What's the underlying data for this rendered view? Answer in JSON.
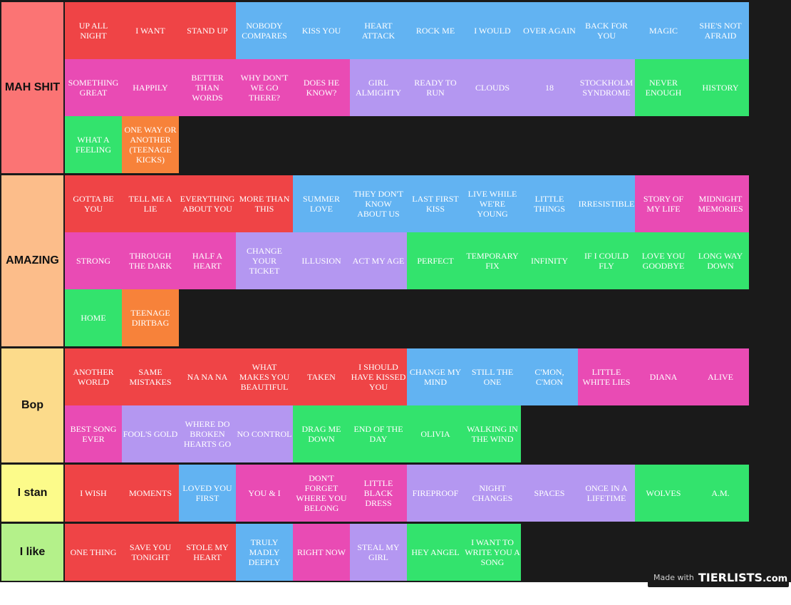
{
  "colors": {
    "red": "#ef4446",
    "blue": "#62b3f2",
    "pink": "#e94bb4",
    "purple": "#b497f1",
    "green": "#33e36d",
    "orange": "#f7823a"
  },
  "tiers": [
    {
      "label": "MAH SHIT",
      "color": "#fb7474",
      "items": [
        {
          "text": "UP ALL NIGHT",
          "color": "red"
        },
        {
          "text": "I WANT",
          "color": "red"
        },
        {
          "text": "STAND UP",
          "color": "red"
        },
        {
          "text": "NOBODY COMPARES",
          "color": "blue"
        },
        {
          "text": "KISS YOU",
          "color": "blue"
        },
        {
          "text": "HEART ATTACK",
          "color": "blue"
        },
        {
          "text": "ROCK ME",
          "color": "blue"
        },
        {
          "text": "I WOULD",
          "color": "blue"
        },
        {
          "text": "OVER AGAIN",
          "color": "blue"
        },
        {
          "text": "BACK FOR YOU",
          "color": "blue"
        },
        {
          "text": "MAGIC",
          "color": "blue"
        },
        {
          "text": "SHE'S NOT AFRAID",
          "color": "blue"
        },
        {
          "text": "SOMETHING GREAT",
          "color": "pink"
        },
        {
          "text": "HAPPILY",
          "color": "pink"
        },
        {
          "text": "BETTER THAN WORDS",
          "color": "pink"
        },
        {
          "text": "WHY DON'T WE GO THERE?",
          "color": "pink"
        },
        {
          "text": "DOES HE KNOW?",
          "color": "pink"
        },
        {
          "text": "GIRL ALMIGHTY",
          "color": "purple"
        },
        {
          "text": "READY TO RUN",
          "color": "purple"
        },
        {
          "text": "CLOUDS",
          "color": "purple"
        },
        {
          "text": "18",
          "color": "purple"
        },
        {
          "text": "STOCKHOLM SYNDROME",
          "color": "purple"
        },
        {
          "text": "NEVER ENOUGH",
          "color": "green"
        },
        {
          "text": "HISTORY",
          "color": "green"
        },
        {
          "text": "WHAT A FEELING",
          "color": "green"
        },
        {
          "text": "ONE WAY OR ANOTHER (TEENAGE KICKS)",
          "color": "orange"
        }
      ]
    },
    {
      "label": "AMAZING",
      "color": "#fcbd8a",
      "items": [
        {
          "text": "GOTTA BE YOU",
          "color": "red"
        },
        {
          "text": "TELL ME A LIE",
          "color": "red"
        },
        {
          "text": "EVERYTHING ABOUT YOU",
          "color": "red"
        },
        {
          "text": "MORE THAN THIS",
          "color": "red"
        },
        {
          "text": "SUMMER LOVE",
          "color": "blue"
        },
        {
          "text": "THEY DON'T KNOW ABOUT US",
          "color": "blue"
        },
        {
          "text": "LAST FIRST KISS",
          "color": "blue"
        },
        {
          "text": "LIVE WHILE WE'RE YOUNG",
          "color": "blue"
        },
        {
          "text": "LITTLE THINGS",
          "color": "blue"
        },
        {
          "text": "IRRESISTIBLE",
          "color": "blue"
        },
        {
          "text": "STORY OF MY LIFE",
          "color": "pink"
        },
        {
          "text": "MIDNIGHT MEMORIES",
          "color": "pink"
        },
        {
          "text": "STRONG",
          "color": "pink"
        },
        {
          "text": "THROUGH THE DARK",
          "color": "pink"
        },
        {
          "text": "HALF A HEART",
          "color": "pink"
        },
        {
          "text": "CHANGE YOUR TICKET",
          "color": "purple"
        },
        {
          "text": "ILLUSION",
          "color": "purple"
        },
        {
          "text": "ACT MY AGE",
          "color": "purple"
        },
        {
          "text": "PERFECT",
          "color": "green"
        },
        {
          "text": "TEMPORARY FIX",
          "color": "green"
        },
        {
          "text": "INFINITY",
          "color": "green"
        },
        {
          "text": "IF I COULD FLY",
          "color": "green"
        },
        {
          "text": "LOVE YOU GOODBYE",
          "color": "green"
        },
        {
          "text": "LONG WAY DOWN",
          "color": "green"
        },
        {
          "text": "HOME",
          "color": "green"
        },
        {
          "text": "TEENAGE DIRTBAG",
          "color": "orange"
        }
      ]
    },
    {
      "label": "Bop",
      "color": "#fcdb8b",
      "items": [
        {
          "text": "ANOTHER WORLD",
          "color": "red"
        },
        {
          "text": "SAME MISTAKES",
          "color": "red"
        },
        {
          "text": "NA NA NA",
          "color": "red"
        },
        {
          "text": "WHAT MAKES YOU BEAUTIFUL",
          "color": "red"
        },
        {
          "text": "TAKEN",
          "color": "red"
        },
        {
          "text": "I SHOULD HAVE KISSED YOU",
          "color": "red"
        },
        {
          "text": "CHANGE MY MIND",
          "color": "blue"
        },
        {
          "text": "STILL THE ONE",
          "color": "blue"
        },
        {
          "text": "C'MON, C'MON",
          "color": "blue"
        },
        {
          "text": "LITTLE WHITE LIES",
          "color": "pink"
        },
        {
          "text": "DIANA",
          "color": "pink"
        },
        {
          "text": "ALIVE",
          "color": "pink"
        },
        {
          "text": "BEST SONG EVER",
          "color": "pink"
        },
        {
          "text": "FOOL'S GOLD",
          "color": "purple"
        },
        {
          "text": "WHERE DO BROKEN HEARTS GO",
          "color": "purple"
        },
        {
          "text": "NO CONTROL",
          "color": "purple"
        },
        {
          "text": "DRAG ME DOWN",
          "color": "green"
        },
        {
          "text": "END OF THE DAY",
          "color": "green"
        },
        {
          "text": "OLIVIA",
          "color": "green"
        },
        {
          "text": "WALKING IN THE WIND",
          "color": "green"
        }
      ]
    },
    {
      "label": "I stan",
      "color": "#fcfb8a",
      "items": [
        {
          "text": "I WISH",
          "color": "red"
        },
        {
          "text": "MOMENTS",
          "color": "red"
        },
        {
          "text": "LOVED YOU FIRST",
          "color": "blue"
        },
        {
          "text": "YOU & I",
          "color": "pink"
        },
        {
          "text": "DON'T FORGET WHERE YOU BELONG",
          "color": "pink"
        },
        {
          "text": "LITTLE BLACK DRESS",
          "color": "pink"
        },
        {
          "text": "FIREPROOF",
          "color": "purple"
        },
        {
          "text": "NIGHT CHANGES",
          "color": "purple"
        },
        {
          "text": "SPACES",
          "color": "purple"
        },
        {
          "text": "ONCE IN A LIFETIME",
          "color": "purple"
        },
        {
          "text": "WOLVES",
          "color": "green"
        },
        {
          "text": "A.M.",
          "color": "green"
        }
      ]
    },
    {
      "label": "I like",
      "color": "#b4f18a",
      "items": [
        {
          "text": "ONE THING",
          "color": "red"
        },
        {
          "text": "SAVE YOU TONIGHT",
          "color": "red"
        },
        {
          "text": "STOLE MY HEART",
          "color": "red"
        },
        {
          "text": "TRULY MADLY DEEPLY",
          "color": "blue"
        },
        {
          "text": "RIGHT NOW",
          "color": "pink"
        },
        {
          "text": "STEAL MY GIRL",
          "color": "purple"
        },
        {
          "text": "HEY ANGEL",
          "color": "green"
        },
        {
          "text": "I WANT TO WRITE YOU A SONG",
          "color": "green"
        }
      ]
    }
  ],
  "watermark": {
    "made_with": "Made with",
    "brand": "TIERLISTS",
    "brand_suffix": ".com"
  }
}
